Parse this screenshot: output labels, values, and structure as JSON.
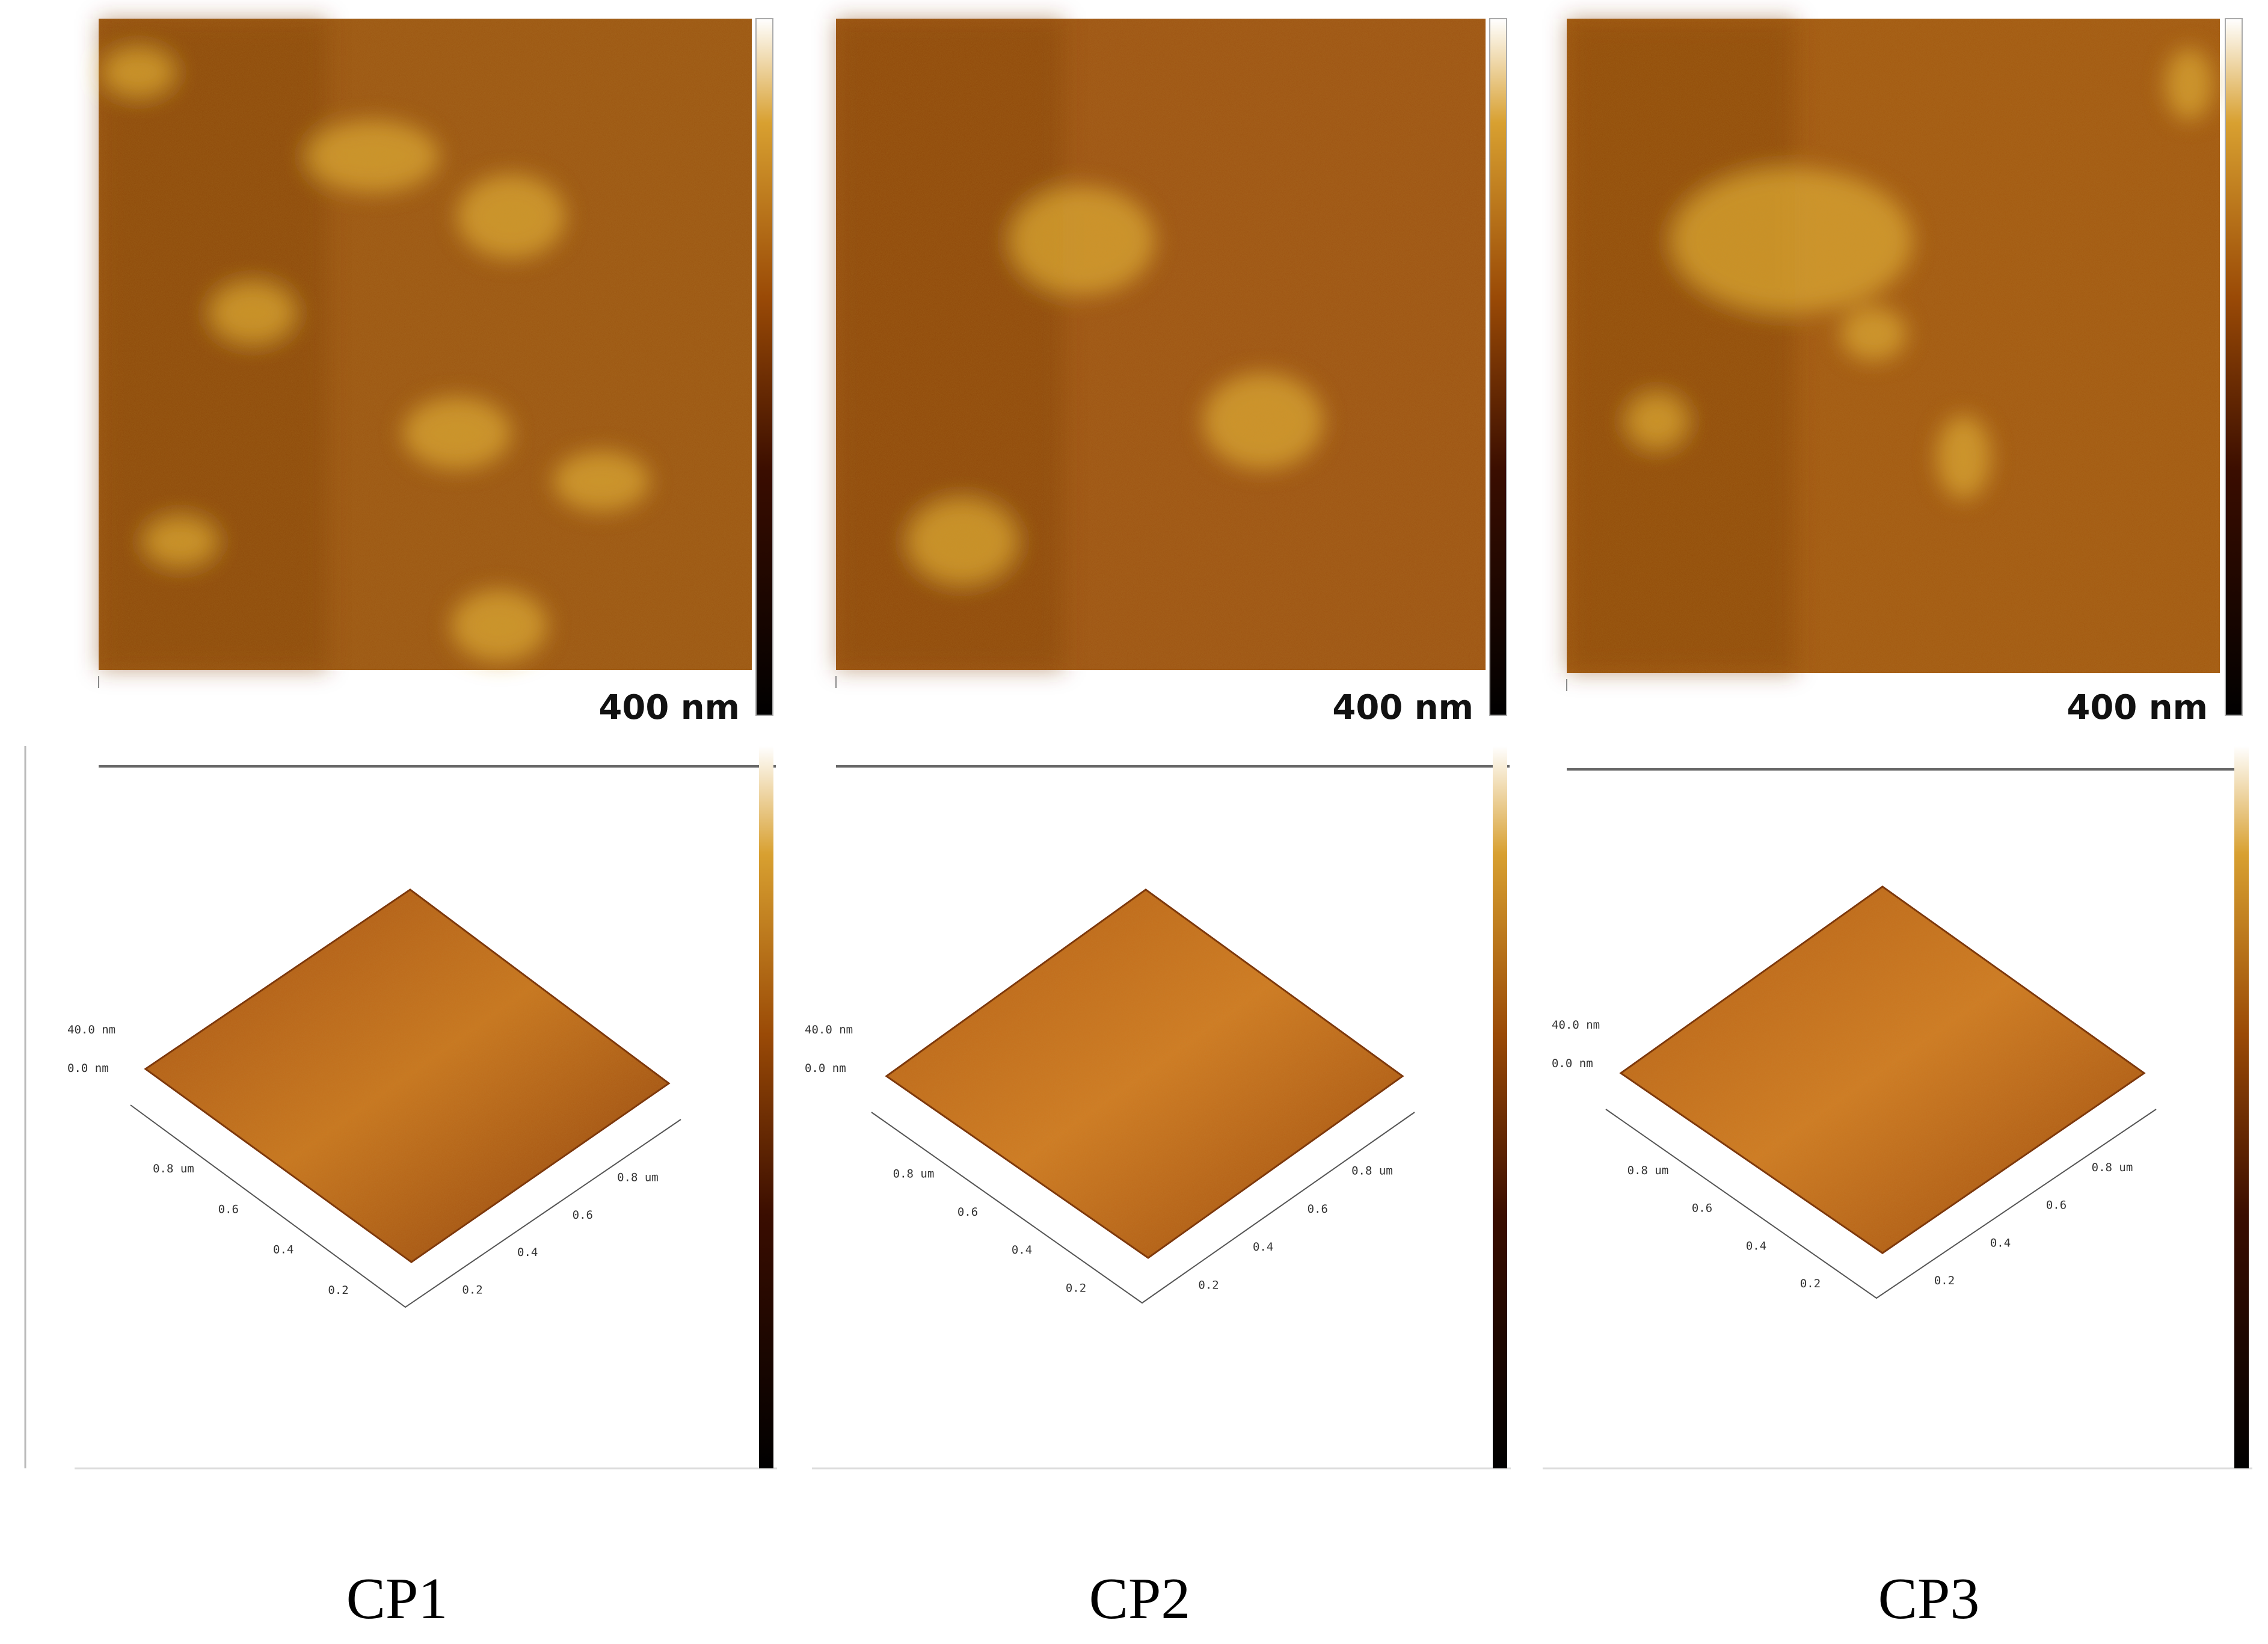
{
  "panels": [
    {
      "label": "CP1",
      "scale_bar": "400 nm",
      "z_axis": [
        "40.0 nm",
        "0.0 nm"
      ],
      "x_axis": [
        "0.8 um",
        "0.6",
        "0.4",
        "0.2"
      ],
      "y_axis": [
        "0.8 um",
        "0.6",
        "0.4",
        "0.2"
      ]
    },
    {
      "label": "CP2",
      "scale_bar": "400 nm",
      "z_axis": [
        "40.0 nm",
        "0.0 nm"
      ],
      "x_axis": [
        "0.8 um",
        "0.6",
        "0.4",
        "0.2"
      ],
      "y_axis": [
        "0.8 um",
        "0.6",
        "0.4",
        "0.2"
      ]
    },
    {
      "label": "CP3",
      "scale_bar": "400 nm",
      "z_axis": [
        "40.0 nm",
        "0.0 nm"
      ],
      "x_axis": [
        "0.8 um",
        "0.6",
        "0.4",
        "0.2"
      ],
      "y_axis": [
        "0.8 um",
        "0.6",
        "0.4",
        "0.2"
      ]
    }
  ]
}
